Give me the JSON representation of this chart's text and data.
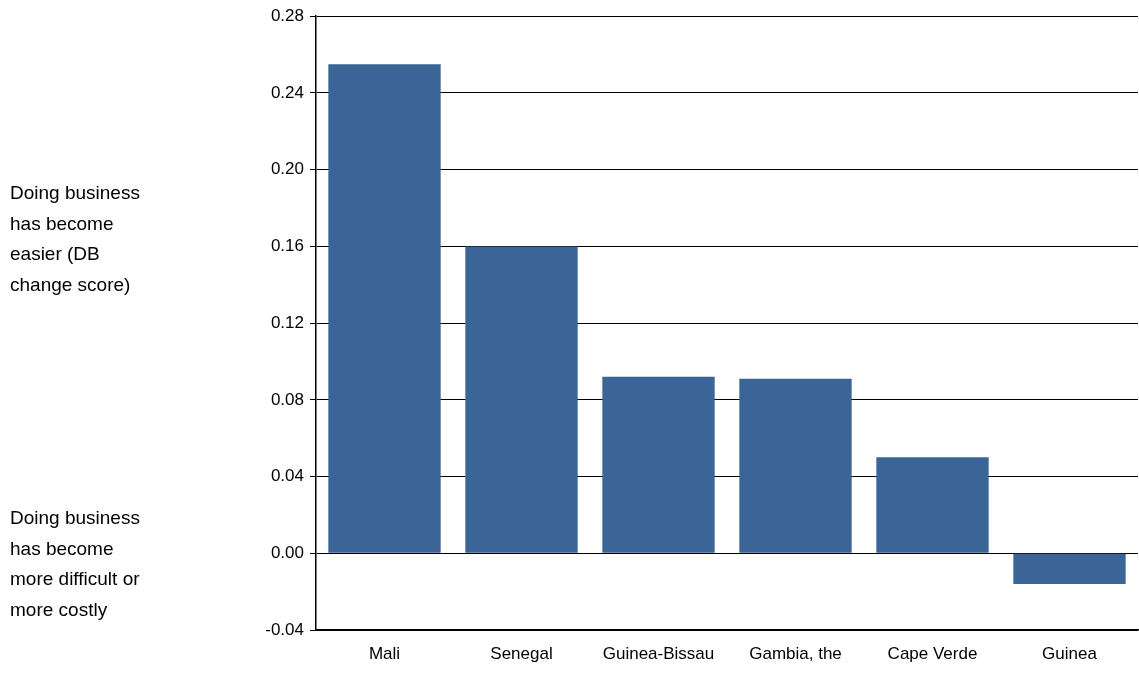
{
  "chart_data": {
    "type": "bar",
    "categories": [
      "Mali",
      "Senegal",
      "Guinea-Bissau",
      "Gambia, the",
      "Cape Verde",
      "Guinea"
    ],
    "values": [
      0.255,
      0.16,
      0.092,
      0.091,
      0.05,
      -0.016
    ],
    "color": "#3a6596",
    "ylim": [
      -0.04,
      0.28
    ],
    "yticks": [
      {
        "value": -0.04,
        "label": "-0.04"
      },
      {
        "value": 0,
        "label": "0.00"
      },
      {
        "value": 0.04,
        "label": "0.04"
      },
      {
        "value": 0.08,
        "label": "0.08"
      },
      {
        "value": 0.12,
        "label": "0.12"
      },
      {
        "value": 0.16,
        "label": "0.16"
      },
      {
        "value": 0.2,
        "label": "0.20"
      },
      {
        "value": 0.24,
        "label": "0.24"
      },
      {
        "value": 0.28,
        "label": "0.28"
      }
    ],
    "grid": "y",
    "annotations": [
      "Doing business has become easier (DB change score)",
      "Doing business has become more difficult or more costly"
    ]
  }
}
